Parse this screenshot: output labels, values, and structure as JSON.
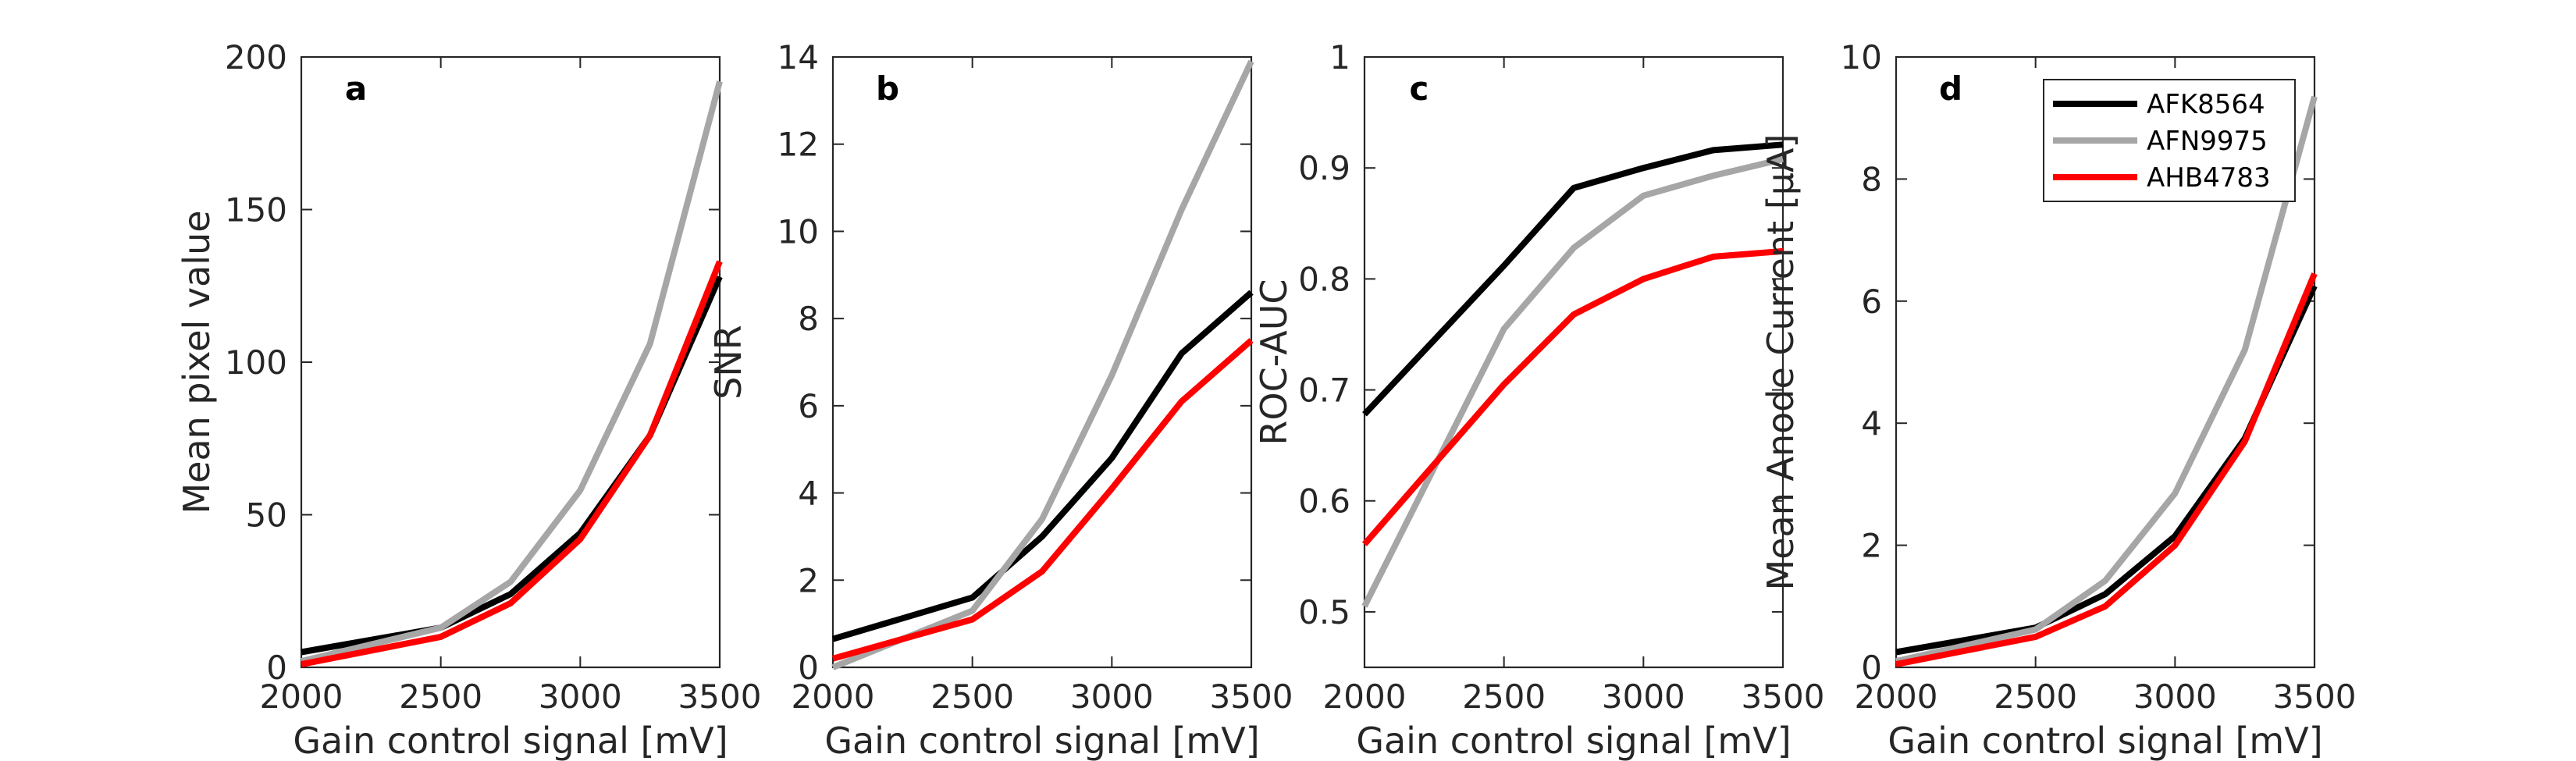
{
  "series_styles": [
    {
      "name": "AFK8564",
      "color": "#000000"
    },
    {
      "name": "AFN9975",
      "color": "#a6a6a6"
    },
    {
      "name": "AHB4783",
      "color": "#ff0000"
    }
  ],
  "chart_data": [
    {
      "type": "line",
      "panel": "a",
      "xlabel": "Gain control signal [mV]",
      "ylabel": "Mean pixel value",
      "xlim": [
        2000,
        3500
      ],
      "ylim": [
        0,
        200
      ],
      "xticks": [
        2000,
        2500,
        3000,
        3500
      ],
      "yticks": [
        0,
        50,
        100,
        150,
        200
      ],
      "x": [
        2000,
        2500,
        2750,
        3000,
        3250,
        3500
      ],
      "series": [
        {
          "name": "AFK8564",
          "values": [
            5,
            13,
            24,
            44,
            76,
            128
          ]
        },
        {
          "name": "AFN9975",
          "values": [
            2,
            13,
            28,
            58,
            106,
            192
          ]
        },
        {
          "name": "AHB4783",
          "values": [
            1,
            10,
            21,
            42,
            76,
            133
          ]
        }
      ]
    },
    {
      "type": "line",
      "panel": "b",
      "xlabel": "Gain control signal [mV]",
      "ylabel": "SNR",
      "xlim": [
        2000,
        3500
      ],
      "ylim": [
        0,
        14
      ],
      "xticks": [
        2000,
        2500,
        3000,
        3500
      ],
      "yticks": [
        0,
        2,
        4,
        6,
        8,
        10,
        12,
        14
      ],
      "x": [
        2000,
        2500,
        2750,
        3000,
        3250,
        3500
      ],
      "series": [
        {
          "name": "AFK8564",
          "values": [
            0.65,
            1.6,
            3.0,
            4.8,
            7.2,
            8.6
          ]
        },
        {
          "name": "AFN9975",
          "values": [
            0.0,
            1.3,
            3.4,
            6.7,
            10.5,
            13.9
          ]
        },
        {
          "name": "AHB4783",
          "values": [
            0.2,
            1.1,
            2.2,
            4.1,
            6.1,
            7.5
          ]
        }
      ]
    },
    {
      "type": "line",
      "panel": "c",
      "xlabel": "Gain control signal [mV]",
      "ylabel": "ROC-AUC",
      "xlim": [
        2000,
        3500
      ],
      "ylim": [
        0.45,
        1
      ],
      "xticks": [
        2000,
        2500,
        3000,
        3500
      ],
      "yticks": [
        0.5,
        0.6,
        0.7,
        0.8,
        0.9,
        1
      ],
      "ytick_labels": [
        "0.5",
        "0.6",
        "0.7",
        "0.8",
        "0.9",
        "1"
      ],
      "x": [
        2000,
        2500,
        2750,
        3000,
        3250,
        3500
      ],
      "series": [
        {
          "name": "AFK8564",
          "values": [
            0.678,
            0.812,
            0.882,
            0.9,
            0.916,
            0.921
          ]
        },
        {
          "name": "AFN9975",
          "values": [
            0.505,
            0.755,
            0.828,
            0.875,
            0.893,
            0.908
          ]
        },
        {
          "name": "AHB4783",
          "values": [
            0.561,
            0.705,
            0.768,
            0.8,
            0.82,
            0.825
          ]
        }
      ]
    },
    {
      "type": "line",
      "panel": "d",
      "xlabel": "Gain control signal [mV]",
      "ylabel": "Mean Anode Current [μA]",
      "xlim": [
        2000,
        3500
      ],
      "ylim": [
        0,
        10
      ],
      "xticks": [
        2000,
        2500,
        3000,
        3500
      ],
      "yticks": [
        0,
        2,
        4,
        6,
        8,
        10
      ],
      "x": [
        2000,
        2500,
        2750,
        3000,
        3250,
        3500
      ],
      "legend": {
        "placement": "top-right",
        "entries": [
          "AFK8564",
          "AFN9975",
          "AHB4783"
        ]
      },
      "series": [
        {
          "name": "AFK8564",
          "values": [
            0.25,
            0.65,
            1.2,
            2.15,
            3.75,
            6.25
          ]
        },
        {
          "name": "AFN9975",
          "values": [
            0.1,
            0.62,
            1.42,
            2.85,
            5.2,
            9.35
          ]
        },
        {
          "name": "AHB4783",
          "values": [
            0.05,
            0.5,
            1.0,
            2.0,
            3.7,
            6.45
          ]
        }
      ]
    }
  ]
}
